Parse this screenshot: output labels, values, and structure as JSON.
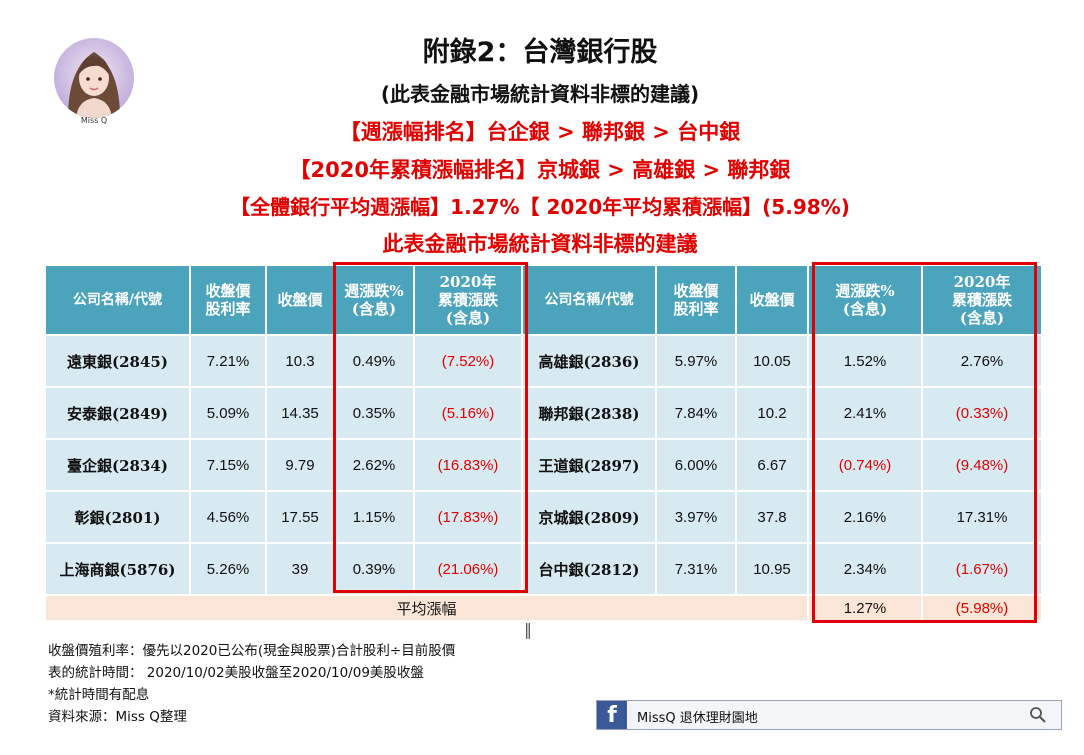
{
  "avatar_caption": "Miss Q",
  "title": "附錄2：台灣銀行股",
  "subtitle": "(此表金融市場統計資料非標的建議)",
  "lines": [
    "【週漲幅排名】台企銀 > 聯邦銀 > 台中銀",
    "【2020年累積漲幅排名】京城銀 > 高雄銀 > 聯邦銀",
    "【全體銀行平均週漲幅】1.27%【 2020年平均累積漲幅】(5.98%)",
    "此表金融市場統計資料非標的建議"
  ],
  "table": {
    "headers": {
      "name": "公司名稱/代號",
      "yield_1": "收盤價",
      "yield_2": "股利率",
      "price": "收盤價",
      "week_1": "週漲跌%",
      "week_2": "(含息)",
      "ytd_1": "2020年",
      "ytd_2": "累積漲跌",
      "ytd_3": "(含息)"
    },
    "rows": [
      {
        "l_name": "遠東銀(2845)",
        "l_yield": "7.21%",
        "l_price": "10.3",
        "l_week": "0.49%",
        "l_ytd": "(7.52%)",
        "r_name": "高雄銀(2836)",
        "r_yield": "5.97%",
        "r_price": "10.05",
        "r_week": "1.52%",
        "r_ytd": "2.76%"
      },
      {
        "l_name": "安泰銀(2849)",
        "l_yield": "5.09%",
        "l_price": "14.35",
        "l_week": "0.35%",
        "l_ytd": "(5.16%)",
        "r_name": "聯邦銀(2838)",
        "r_yield": "7.84%",
        "r_price": "10.2",
        "r_week": "2.41%",
        "r_ytd": "(0.33%)"
      },
      {
        "l_name": "臺企銀(2834)",
        "l_yield": "7.15%",
        "l_price": "9.79",
        "l_week": "2.62%",
        "l_ytd": "(16.83%)",
        "r_name": "王道銀(2897)",
        "r_yield": "6.00%",
        "r_price": "6.67",
        "r_week": "(0.74%)",
        "r_ytd": "(9.48%)"
      },
      {
        "l_name": "彰銀(2801)",
        "l_yield": "4.56%",
        "l_price": "17.55",
        "l_week": "1.15%",
        "l_ytd": "(17.83%)",
        "r_name": "京城銀(2809)",
        "r_yield": "3.97%",
        "r_price": "37.8",
        "r_week": "2.16%",
        "r_ytd": "17.31%"
      },
      {
        "l_name": "上海商銀(5876)",
        "l_yield": "5.26%",
        "l_price": "39",
        "l_week": "0.39%",
        "l_ytd": "(21.06%)",
        "r_name": "台中銀(2812)",
        "r_yield": "7.31%",
        "r_price": "10.95",
        "r_week": "2.34%",
        "r_ytd": "(1.67%)"
      }
    ],
    "average": {
      "label": "平均漲幅",
      "week": "1.27%",
      "ytd": "(5.98%)"
    }
  },
  "notes": [
    "收盤價殖利率：優先以2020已公布(現金與股票)合計股利÷目前股價",
    "表的統計時間： 2020/10/02美股收盤至2020/10/09美股收盤",
    "*統計時間有配息",
    "資料來源：Miss Q整理"
  ],
  "facebook": {
    "icon": "f",
    "label": "MissQ 退休理財園地"
  },
  "colors": {
    "header": "#4ba3bc",
    "cell": "#d7eaf1",
    "average_row": "#fbe5d6",
    "highlight": "#e00000"
  }
}
